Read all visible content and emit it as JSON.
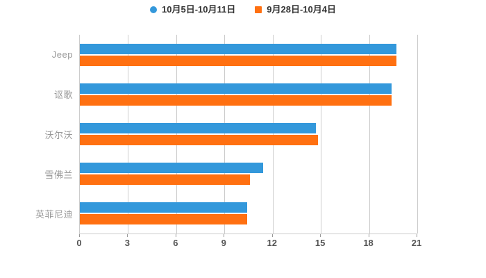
{
  "legend": {
    "items": [
      {
        "label": "10月5日-10月11日",
        "color": "#3398db",
        "marker": "circle"
      },
      {
        "label": "9月28日-10月4日",
        "color": "#ff7011",
        "marker": "square"
      }
    ]
  },
  "chart_data": {
    "type": "bar",
    "orientation": "horizontal",
    "title": "",
    "xlabel": "",
    "ylabel": "",
    "categories": [
      "Jeep",
      "讴歌",
      "沃尔沃",
      "雪佛兰",
      "英菲尼迪"
    ],
    "series": [
      {
        "name": "10月5日-10月11日",
        "color": "#3398db",
        "values": [
          19.7,
          19.4,
          14.7,
          11.4,
          10.4
        ]
      },
      {
        "name": "9月28日-10月4日",
        "color": "#ff7011",
        "values": [
          19.7,
          19.4,
          14.8,
          10.6,
          10.4
        ]
      }
    ],
    "x_ticks": [
      0,
      3,
      6,
      9,
      12,
      15,
      18,
      21
    ],
    "xlim": [
      0,
      21
    ],
    "grid": "vertical-lines",
    "legend_position": "top-center",
    "colors": {
      "background": "#ffffff",
      "grid_line": "#cccccc",
      "axis_line": "#cccccc",
      "tick_mark": "#999999",
      "x_tick_label": "#555555",
      "category_label": "#999999",
      "legend_text": "#333333"
    }
  }
}
